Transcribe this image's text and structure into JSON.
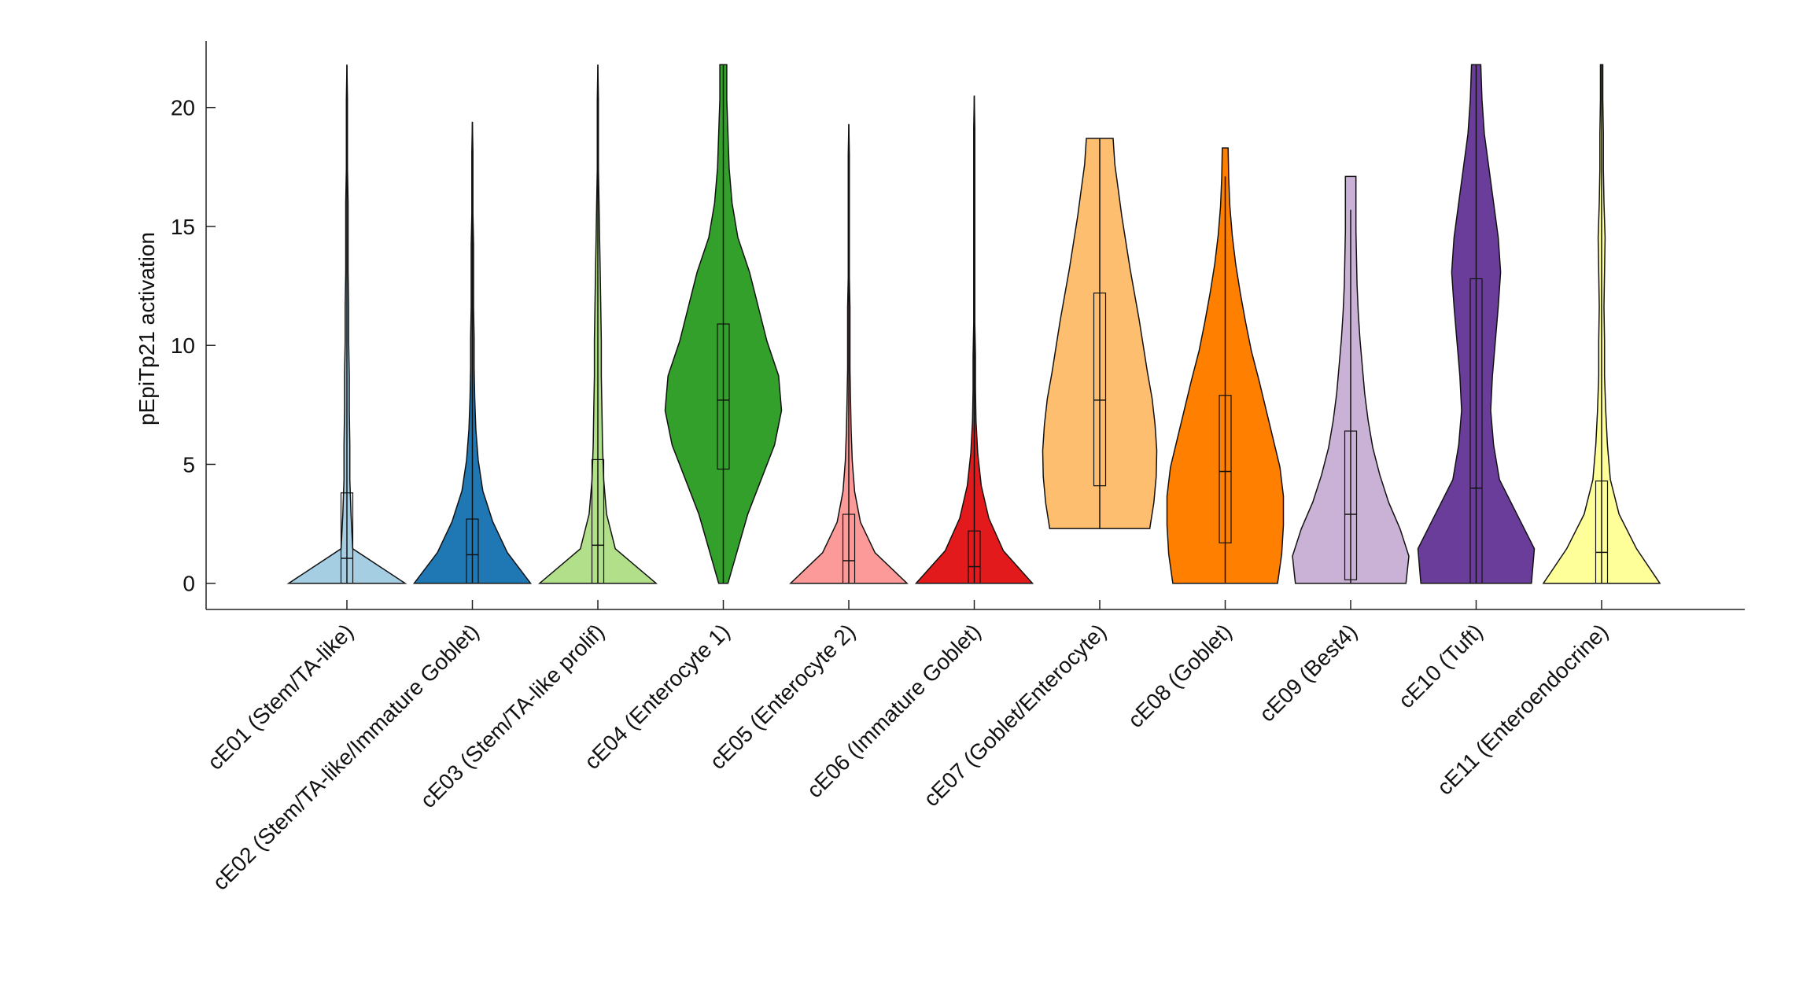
{
  "chart_data": {
    "type": "violin",
    "y_label": "pEpiTp21 activation",
    "ylim": [
      -1.1,
      22.8
    ],
    "yticks": [
      0,
      5,
      10,
      15,
      20
    ],
    "categories": [
      "cE01 (Stem/TA-like)",
      "cE02 (Stem/TA-like/Immature Goblet)",
      "cE03 (Stem/TA-like prolif)",
      "cE04 (Enterocyte 1)",
      "cE05 (Enterocyte 2)",
      "cE06 (Immature Goblet)",
      "cE07 (Goblet/Enterocyte)",
      "cE08 (Goblet)",
      "cE09 (Best4)",
      "cE10 (Tuft)",
      "cE11 (Enteroendocrine)"
    ],
    "colors": [
      "#a6cee3",
      "#1f78b4",
      "#b2df8a",
      "#33a02c",
      "#fb9a99",
      "#e31a1c",
      "#fdbf6f",
      "#ff7f00",
      "#cab2d6",
      "#6a3d9a",
      "#ffff99"
    ],
    "violins": [
      {
        "min": 0,
        "max": 21.8,
        "q1": 0,
        "median": 1.05,
        "q3": 3.8,
        "whisker": [
          0,
          21.8
        ],
        "density": [
          1.0,
          0.1,
          0.07,
          0.05,
          0.05,
          0.04,
          0.04,
          0.03,
          0.03,
          0.02,
          0.02,
          0.02,
          0.01,
          0.01,
          0.01,
          0
        ]
      },
      {
        "min": 0,
        "max": 19.4,
        "q1": 0,
        "median": 1.2,
        "q3": 2.7,
        "whisker": [
          0,
          19.4
        ],
        "density": [
          1.0,
          0.6,
          0.35,
          0.18,
          0.1,
          0.06,
          0.04,
          0.03,
          0.03,
          0.02,
          0.02,
          0.02,
          0.01,
          0.01,
          0.01,
          0
        ]
      },
      {
        "min": 0,
        "max": 21.8,
        "q1": 0,
        "median": 1.6,
        "q3": 5.2,
        "whisker": [
          0,
          21.8
        ],
        "density": [
          1.0,
          0.3,
          0.15,
          0.1,
          0.08,
          0.07,
          0.06,
          0.06,
          0.05,
          0.04,
          0.03,
          0.02,
          0.01,
          0.01,
          0.01,
          0
        ]
      },
      {
        "min": 0,
        "max": 21.8,
        "q1": 4.8,
        "median": 7.7,
        "q3": 10.9,
        "whisker": [
          0,
          21.8
        ],
        "density": [
          0.08,
          0.25,
          0.42,
          0.65,
          0.88,
          1.0,
          0.95,
          0.75,
          0.6,
          0.45,
          0.25,
          0.15,
          0.1,
          0.08,
          0.06,
          0.06
        ]
      },
      {
        "min": 0,
        "max": 19.3,
        "q1": 0,
        "median": 0.95,
        "q3": 2.9,
        "whisker": [
          0,
          19.3
        ],
        "density": [
          1.0,
          0.45,
          0.2,
          0.1,
          0.06,
          0.04,
          0.03,
          0.02,
          0.02,
          0.02,
          0.01,
          0.01,
          0.01,
          0.01,
          0.01,
          0
        ]
      },
      {
        "min": 0,
        "max": 20.5,
        "q1": 0,
        "median": 0.7,
        "q3": 2.2,
        "whisker": [
          0,
          20.5
        ],
        "density": [
          1.0,
          0.5,
          0.25,
          0.12,
          0.06,
          0.03,
          0.02,
          0.02,
          0.01,
          0.01,
          0.01,
          0.01,
          0.01,
          0.01,
          0.01,
          0
        ]
      },
      {
        "min": 2.3,
        "max": 18.7,
        "q1": 4.1,
        "median": 7.7,
        "q3": 12.2,
        "whisker": [
          2.3,
          18.7
        ],
        "density": [
          0.86,
          0.93,
          0.97,
          0.98,
          0.95,
          0.9,
          0.82,
          0.75,
          0.68,
          0.6,
          0.52,
          0.45,
          0.38,
          0.32,
          0.26,
          0.23
        ]
      },
      {
        "min": 0,
        "max": 18.3,
        "q1": 1.7,
        "median": 4.7,
        "q3": 7.9,
        "whisker": [
          0,
          17.1
        ],
        "density": [
          0.9,
          0.97,
          1.0,
          1.0,
          0.94,
          0.82,
          0.7,
          0.58,
          0.45,
          0.35,
          0.26,
          0.18,
          0.12,
          0.08,
          0.06,
          0.05
        ]
      },
      {
        "min": 0,
        "max": 17.1,
        "q1": 0.15,
        "median": 2.9,
        "q3": 6.4,
        "whisker": [
          0,
          15.7
        ],
        "density": [
          0.95,
          1.0,
          0.85,
          0.65,
          0.5,
          0.38,
          0.3,
          0.24,
          0.2,
          0.16,
          0.13,
          0.11,
          0.1,
          0.09,
          0.09,
          0.09
        ]
      },
      {
        "min": 0,
        "max": 21.8,
        "q1": 0,
        "median": 4,
        "q3": 12.8,
        "whisker": [
          0,
          21.8
        ],
        "density": [
          0.95,
          1.0,
          0.7,
          0.4,
          0.3,
          0.25,
          0.28,
          0.33,
          0.38,
          0.42,
          0.38,
          0.3,
          0.22,
          0.14,
          0.1,
          0.08
        ]
      },
      {
        "min": 0,
        "max": 21.8,
        "q1": 0,
        "median": 1.3,
        "q3": 4.3,
        "whisker": [
          0,
          21.8
        ],
        "density": [
          1.0,
          0.6,
          0.3,
          0.15,
          0.1,
          0.07,
          0.05,
          0.05,
          0.04,
          0.05,
          0.06,
          0.04,
          0.03,
          0.03,
          0.02,
          0.02
        ]
      }
    ]
  }
}
